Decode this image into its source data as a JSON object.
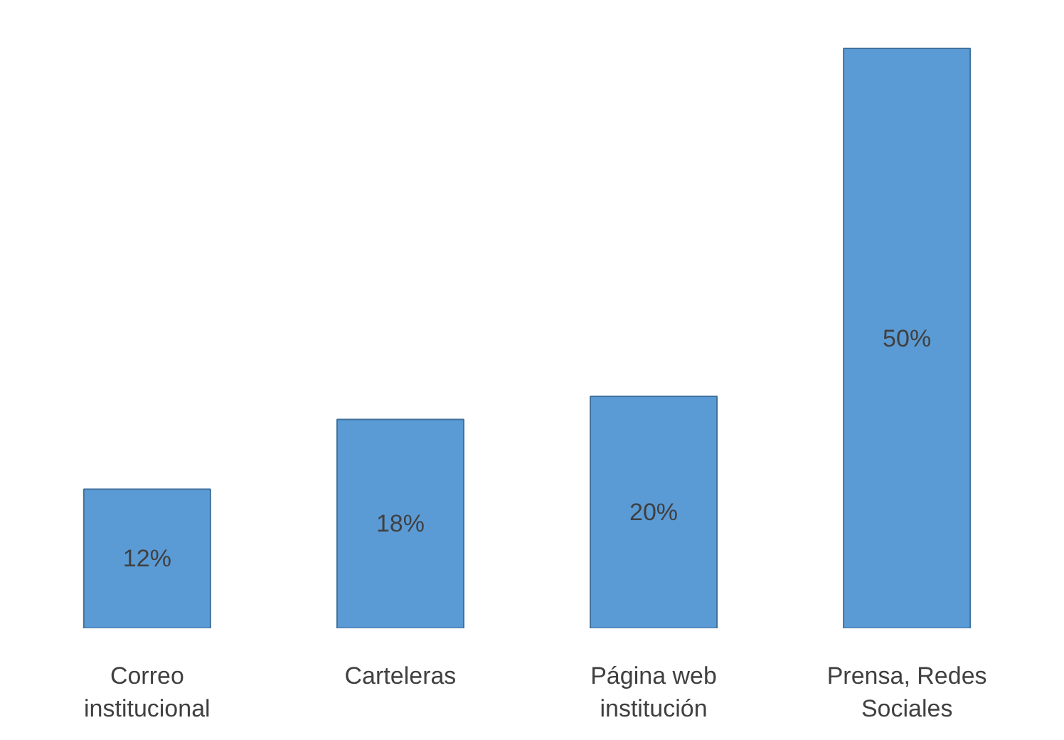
{
  "chart_data": {
    "type": "bar",
    "categories": [
      "Correo\ninstitucional",
      "Carteleras",
      "Página web\ninstitución",
      "Prensa, Redes\nSociales"
    ],
    "values": [
      12,
      18,
      20,
      50
    ],
    "color": "#5b9bd5",
    "value_labels": [
      "12%",
      "18%",
      "20%",
      "50%"
    ]
  }
}
